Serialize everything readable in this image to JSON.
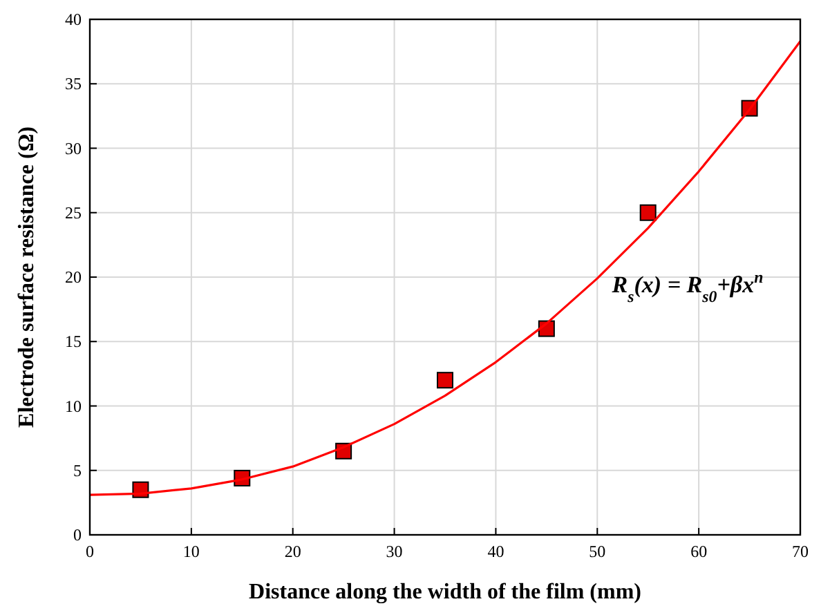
{
  "chart_data": {
    "type": "scatter",
    "xlabel": "Distance along the width of the film (mm)",
    "ylabel": "Electrode surface resistance (Ω)",
    "xlim": [
      0,
      70
    ],
    "ylim": [
      0,
      40
    ],
    "xticks": [
      0,
      10,
      20,
      30,
      40,
      50,
      60,
      70
    ],
    "yticks": [
      0,
      5,
      10,
      15,
      20,
      25,
      30,
      35,
      40
    ],
    "grid": true,
    "series": [
      {
        "color": "#e00000",
        "marker": "square",
        "x": [
          5,
          15,
          25,
          35,
          45,
          55,
          65
        ],
        "values": [
          3.5,
          4.4,
          6.5,
          12,
          16,
          25,
          33.1
        ]
      },
      {
        "type": "line",
        "color": "#ff0000",
        "line_style": "solid",
        "x": [
          0,
          5,
          10,
          15,
          20,
          25,
          30,
          35,
          40,
          45,
          50,
          55,
          60,
          65,
          70
        ],
        "values": [
          3.1,
          3.2,
          3.6,
          4.3,
          5.3,
          6.8,
          8.6,
          10.8,
          13.4,
          16.4,
          19.9,
          23.8,
          28.2,
          33,
          38.3
        ]
      }
    ],
    "annotations": [
      "R$_{s}$(x) = R$_{s0}$+βx$^{n}$"
    ]
  }
}
